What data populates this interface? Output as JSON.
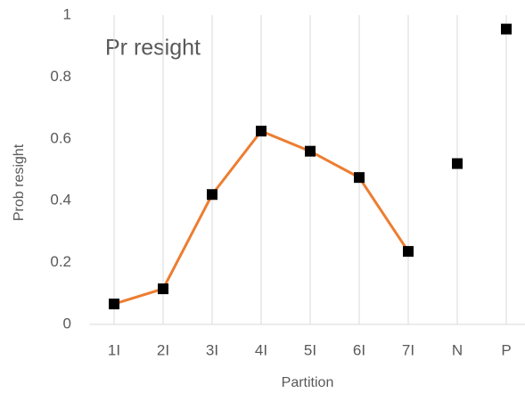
{
  "chart_data": {
    "type": "line",
    "title": "Pr resight",
    "xlabel": "Partition",
    "ylabel": "Prob resight",
    "categories": [
      "1I",
      "2I",
      "3I",
      "4I",
      "5I",
      "6I",
      "7I",
      "N",
      "P"
    ],
    "series": [
      {
        "color": "#ed7d31",
        "marker_color": "#000000",
        "line": true,
        "marker": "square",
        "values": [
          0.066,
          0.115,
          0.42,
          0.625,
          0.56,
          0.475,
          0.236,
          null,
          null
        ]
      },
      {
        "color": "#000000",
        "marker_color": "#000000",
        "line": false,
        "marker": "square",
        "values": [
          null,
          null,
          null,
          null,
          null,
          null,
          null,
          0.52,
          0.955
        ]
      }
    ],
    "ylim": [
      0,
      1
    ],
    "yticks": [
      0,
      0.2,
      0.4,
      0.6,
      0.8,
      1
    ],
    "grid": "x"
  }
}
